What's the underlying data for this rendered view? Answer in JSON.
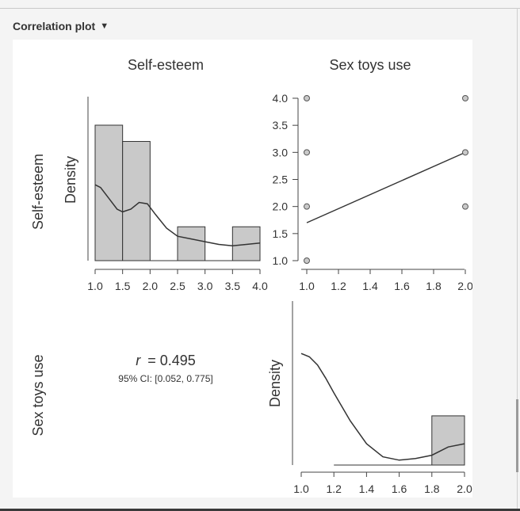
{
  "panel": {
    "title": "Correlation plot",
    "caret_icon": "caret-down-icon"
  },
  "chart_data": {
    "type": "correlation_matrix",
    "variables": [
      "Self-esteem",
      "Sex toys use"
    ],
    "column_titles": [
      "Self-esteem",
      "Sex toys use"
    ],
    "row_titles": [
      "Self-esteem",
      "Sex toys use"
    ],
    "density_ylabel": "Density",
    "histogram_self_esteem": {
      "type": "bar",
      "bins": [
        [
          1.0,
          1.5
        ],
        [
          1.5,
          2.0
        ],
        [
          2.0,
          2.5
        ],
        [
          2.5,
          3.0
        ],
        [
          3.0,
          3.5
        ],
        [
          3.5,
          4.0
        ]
      ],
      "heights": [
        1.0,
        0.88,
        0.0,
        0.25,
        0.0,
        0.25
      ],
      "density_curve": {
        "x": [
          1.0,
          1.1,
          1.25,
          1.4,
          1.5,
          1.65,
          1.8,
          1.95,
          2.1,
          2.3,
          2.5,
          2.75,
          3.0,
          3.25,
          3.5,
          3.75,
          4.0
        ],
        "y": [
          0.56,
          0.54,
          0.46,
          0.38,
          0.36,
          0.38,
          0.43,
          0.42,
          0.34,
          0.24,
          0.18,
          0.16,
          0.14,
          0.12,
          0.11,
          0.12,
          0.13
        ]
      },
      "x_ticks": [
        "1.0",
        "1.5",
        "2.0",
        "2.5",
        "3.0",
        "3.5",
        "4.0"
      ],
      "xlim": [
        1.0,
        4.0
      ]
    },
    "scatter": {
      "type": "scatter",
      "x_ticks": [
        "1.0",
        "1.2",
        "1.4",
        "1.6",
        "1.8",
        "2.0"
      ],
      "y_ticks": [
        "1.0",
        "1.5",
        "2.0",
        "2.5",
        "3.0",
        "3.5",
        "4.0"
      ],
      "xlim": [
        1.0,
        2.0
      ],
      "ylim": [
        1.0,
        4.0
      ],
      "points": [
        [
          1.0,
          4.0
        ],
        [
          1.0,
          3.0
        ],
        [
          1.0,
          2.0
        ],
        [
          1.0,
          1.0
        ],
        [
          2.0,
          4.0
        ],
        [
          2.0,
          3.0
        ],
        [
          2.0,
          2.0
        ]
      ],
      "regression_line": [
        [
          1.0,
          1.7
        ],
        [
          2.0,
          3.0
        ]
      ]
    },
    "correlation": {
      "r_label": "r",
      "r_value": "= 0.495",
      "ci_text": "95% CI: [0.052, 0.775]"
    },
    "histogram_sex_toys_use": {
      "type": "bar",
      "bins": [
        [
          1.2,
          1.4
        ],
        [
          1.4,
          1.6
        ],
        [
          1.6,
          1.8
        ],
        [
          1.8,
          2.0
        ]
      ],
      "heights": [
        0.0,
        0.0,
        0.0,
        0.3
      ],
      "density_curve": {
        "x": [
          1.0,
          1.05,
          1.1,
          1.15,
          1.2,
          1.3,
          1.4,
          1.5,
          1.6,
          1.7,
          1.8,
          1.9,
          2.0
        ],
        "y": [
          0.68,
          0.66,
          0.61,
          0.53,
          0.44,
          0.27,
          0.13,
          0.05,
          0.03,
          0.04,
          0.06,
          0.11,
          0.13
        ]
      },
      "x_ticks": [
        "1.0",
        "1.2",
        "1.4",
        "1.6",
        "1.8",
        "2.0"
      ],
      "xlim": [
        1.0,
        2.0
      ]
    }
  }
}
